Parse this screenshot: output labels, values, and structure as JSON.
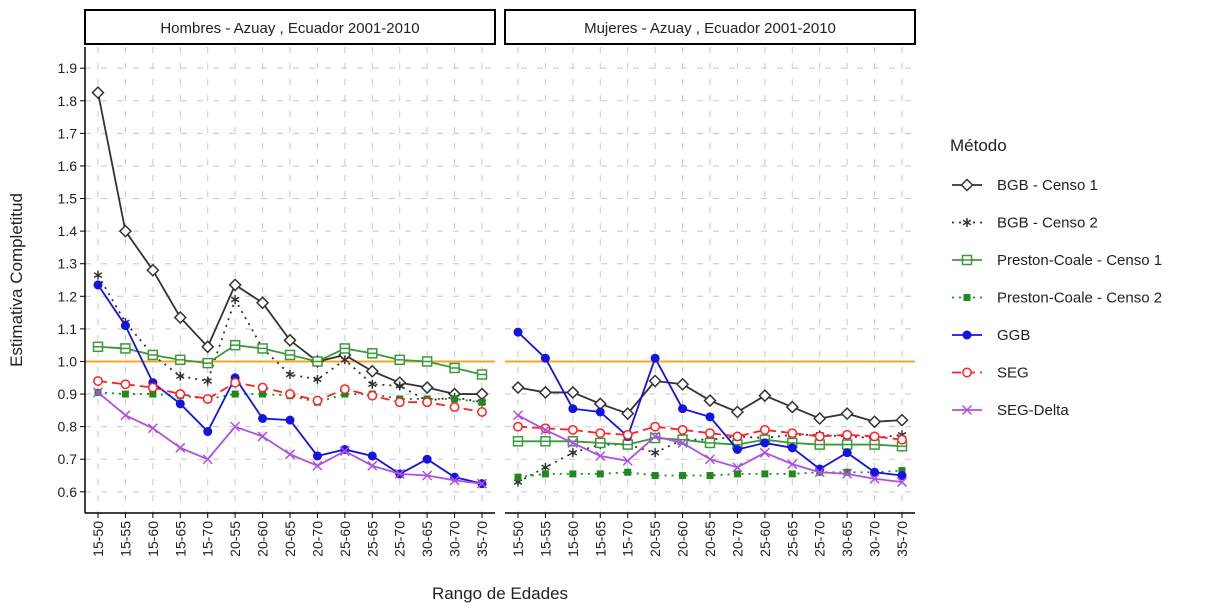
{
  "chart_data": {
    "type": "line",
    "ylabel": "Estimativa Completitud",
    "xlabel": "Rango de Edades",
    "legend_title": "Método",
    "legend_position": "right",
    "grid": true,
    "reference_line": {
      "value": 1,
      "color": "#f5a623"
    },
    "categories": [
      "15-50",
      "15-55",
      "15-60",
      "15-65",
      "15-70",
      "20-55",
      "20-60",
      "20-65",
      "20-70",
      "25-60",
      "25-65",
      "25-70",
      "30-65",
      "30-70",
      "35-70"
    ],
    "ylim": [
      0.535,
      1.965
    ],
    "yticks": [
      0.6,
      0.7,
      0.8,
      0.9,
      {
        "value": 1,
        "label": "1.0"
      },
      1.1,
      1.2,
      1.3,
      1.4,
      1.5,
      1.6,
      1.7,
      1.8,
      1.9
    ],
    "series": [
      {
        "name": "BGB - Censo 1",
        "color": "#333333",
        "marker": "diamond",
        "dash": "solid"
      },
      {
        "name": "BGB - Censo 2",
        "color": "#333333",
        "marker": "asterisk",
        "dash": "dotted"
      },
      {
        "name": "Preston-Coale - Censo 1",
        "color": "#3a9a3a",
        "marker": "square-open",
        "dash": "solid"
      },
      {
        "name": "Preston-Coale - Censo 2",
        "color": "#1e8a1e",
        "marker": "square",
        "dash": "dotted"
      },
      {
        "name": "GGB",
        "color": "#1414e0",
        "marker": "circle",
        "dash": "solid"
      },
      {
        "name": "SEG",
        "color": "#ff2020",
        "marker": "circle-open",
        "dash": "dashed"
      },
      {
        "name": "SEG-Delta",
        "color": "#b050e0",
        "marker": "x",
        "dash": "solid"
      }
    ],
    "facets": [
      {
        "title": "Hombres - Azuay , Ecuador 2001-2010",
        "series": [
          {
            "values": [
              1.825,
              1.4,
              1.28,
              1.135,
              1.045,
              1.235,
              1.18,
              1.065,
              1.0,
              1.02,
              0.97,
              0.935,
              0.92,
              0.9,
              0.9
            ]
          },
          {
            "values": [
              1.265,
              1.12,
              1.02,
              0.955,
              0.94,
              1.19,
              1.04,
              0.96,
              0.945,
              1.005,
              0.93,
              0.925,
              0.88,
              0.89,
              0.875
            ]
          },
          {
            "values": [
              1.045,
              1.04,
              1.02,
              1.005,
              0.995,
              1.05,
              1.04,
              1.02,
              1.0,
              1.04,
              1.025,
              1.005,
              1.0,
              0.98,
              0.96
            ]
          },
          {
            "values": [
              0.905,
              0.9,
              0.9,
              0.895,
              0.885,
              0.9,
              0.9,
              0.895,
              0.875,
              0.9,
              0.9,
              0.885,
              0.885,
              0.885,
              0.875
            ]
          },
          {
            "values": [
              1.235,
              1.11,
              0.935,
              0.87,
              0.785,
              0.95,
              0.825,
              0.82,
              0.71,
              0.73,
              0.71,
              0.655,
              0.7,
              0.645,
              0.625
            ]
          },
          {
            "values": [
              0.94,
              0.93,
              0.92,
              0.9,
              0.885,
              0.935,
              0.92,
              0.9,
              0.88,
              0.915,
              0.895,
              0.875,
              0.875,
              0.86,
              0.845
            ]
          },
          {
            "values": [
              0.905,
              0.835,
              0.795,
              0.735,
              0.7,
              0.8,
              0.77,
              0.715,
              0.68,
              0.725,
              0.68,
              0.655,
              0.65,
              0.635,
              0.625
            ]
          }
        ]
      },
      {
        "title": "Mujeres - Azuay , Ecuador 2001-2010",
        "series": [
          {
            "values": [
              0.92,
              0.905,
              0.905,
              0.87,
              0.84,
              0.94,
              0.93,
              0.88,
              0.845,
              0.895,
              0.86,
              0.825,
              0.84,
              0.815,
              0.82
            ]
          },
          {
            "values": [
              0.63,
              0.675,
              0.72,
              0.745,
              0.745,
              0.72,
              0.76,
              0.76,
              0.77,
              0.765,
              0.775,
              0.775,
              0.77,
              0.765,
              0.775
            ]
          },
          {
            "values": [
              0.755,
              0.755,
              0.755,
              0.75,
              0.745,
              0.765,
              0.76,
              0.75,
              0.745,
              0.76,
              0.75,
              0.745,
              0.745,
              0.745,
              0.74
            ]
          },
          {
            "values": [
              0.645,
              0.655,
              0.655,
              0.655,
              0.66,
              0.65,
              0.65,
              0.65,
              0.655,
              0.655,
              0.655,
              0.66,
              0.66,
              0.66,
              0.665
            ]
          },
          {
            "values": [
              1.09,
              1.01,
              0.855,
              0.845,
              0.77,
              1.01,
              0.855,
              0.83,
              0.73,
              0.75,
              0.735,
              0.67,
              0.72,
              0.66,
              0.65
            ]
          },
          {
            "values": [
              0.8,
              0.795,
              0.79,
              0.78,
              0.775,
              0.8,
              0.79,
              0.78,
              0.77,
              0.79,
              0.78,
              0.77,
              0.775,
              0.77,
              0.76
            ]
          },
          {
            "values": [
              0.835,
              0.79,
              0.75,
              0.71,
              0.695,
              0.77,
              0.75,
              0.7,
              0.675,
              0.72,
              0.685,
              0.66,
              0.655,
              0.64,
              0.63
            ]
          }
        ]
      }
    ]
  }
}
